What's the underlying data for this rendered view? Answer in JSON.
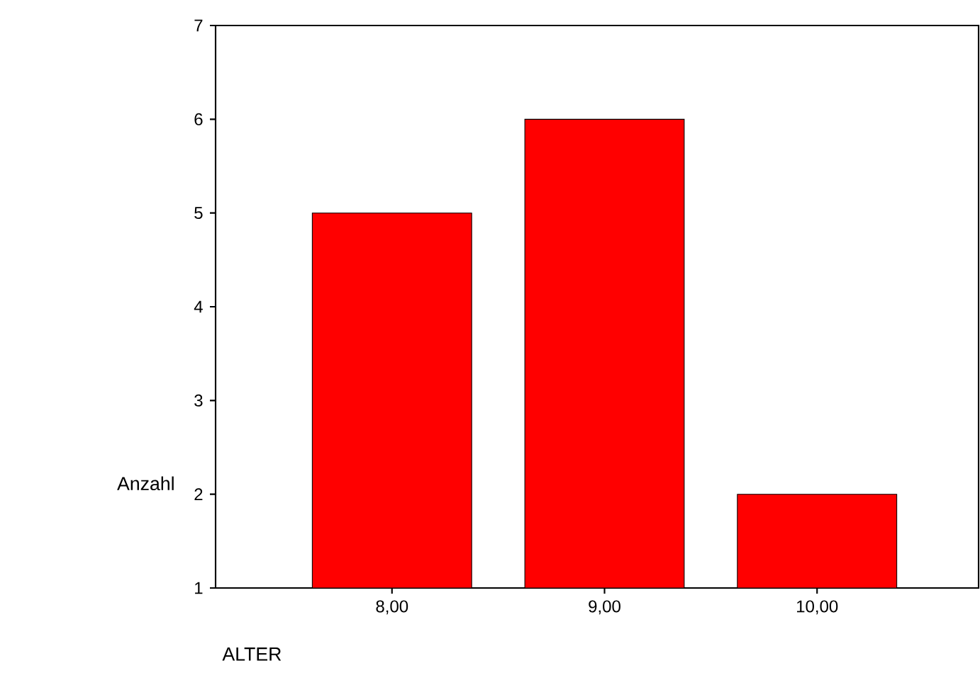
{
  "chart_data": {
    "type": "bar",
    "xlabel": "ALTER",
    "ylabel": "Anzahl",
    "categories": [
      "8,00",
      "9,00",
      "10,00"
    ],
    "values": [
      5,
      6,
      2
    ],
    "color": "#ff0000",
    "ylim": [
      1,
      7
    ],
    "yticks": [
      1,
      2,
      3,
      4,
      5,
      6,
      7
    ],
    "grid": false
  }
}
